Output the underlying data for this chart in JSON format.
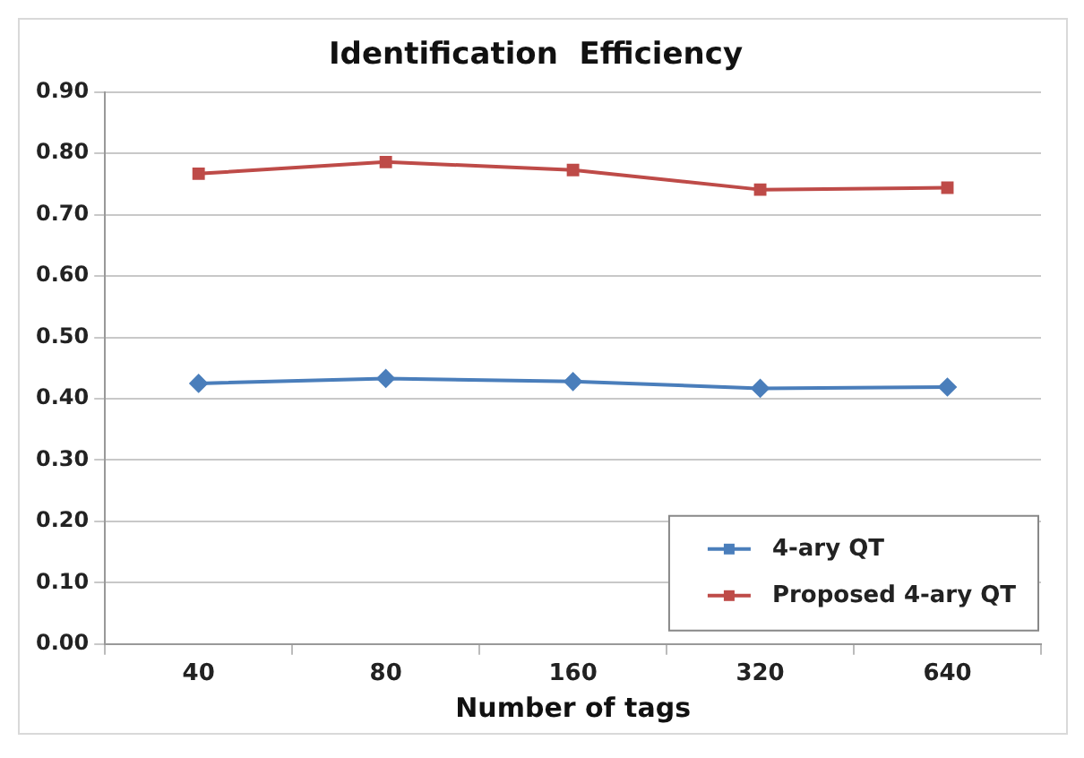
{
  "chart_data": {
    "type": "line",
    "title": "Identification  Efficiency",
    "xlabel": "Number of tags",
    "categories": [
      "40",
      "80",
      "160",
      "320",
      "640"
    ],
    "series": [
      {
        "name": "4-ary QT",
        "color": "#4a7ebb",
        "marker": "diamond",
        "values": [
          0.425,
          0.433,
          0.428,
          0.417,
          0.419
        ]
      },
      {
        "name": "Proposed 4-ary QT",
        "color": "#be4b48",
        "marker": "square",
        "values": [
          0.767,
          0.786,
          0.773,
          0.741,
          0.744
        ]
      }
    ],
    "ylim": [
      0,
      0.9
    ],
    "yticks": [
      {
        "value": 0,
        "label": "0.00"
      },
      {
        "value": 0.1,
        "label": "0.10"
      },
      {
        "value": 0.2,
        "label": "0.20"
      },
      {
        "value": 0.3,
        "label": "0.30"
      },
      {
        "value": 0.4,
        "label": "0.40"
      },
      {
        "value": 0.5,
        "label": "0.50"
      },
      {
        "value": 0.6,
        "label": "0.60"
      },
      {
        "value": 0.7,
        "label": "0.70"
      },
      {
        "value": 0.8,
        "label": "0.80"
      },
      {
        "value": 0.9,
        "label": "0.90"
      }
    ],
    "grid": "y",
    "legend": "bottom right",
    "line_style": "solid"
  }
}
